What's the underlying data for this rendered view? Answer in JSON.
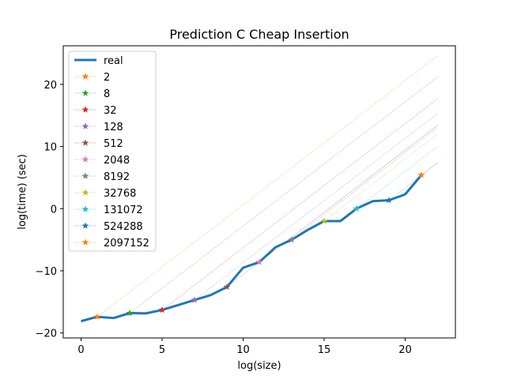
{
  "chart_data": {
    "type": "line",
    "title": "Prediction C Cheap Insertion",
    "xlabel": "log(size)",
    "ylabel": "log(time) (sec)",
    "xlim": [
      -1.1,
      23.1
    ],
    "ylim": [
      -20.8,
      26.2
    ],
    "xticks": [
      0,
      5,
      10,
      15,
      20
    ],
    "yticks": [
      -20,
      -10,
      0,
      10,
      20
    ],
    "grid": false,
    "legend_position": "top-left",
    "real": {
      "name": "real",
      "color": "#1f77b4",
      "x": [
        0,
        1,
        2,
        3,
        4,
        5,
        6,
        7,
        8,
        9,
        10,
        11,
        12,
        13,
        14,
        15,
        16,
        17,
        18,
        19,
        20,
        21
      ],
      "y": [
        -18.1,
        -17.4,
        -17.6,
        -16.8,
        -16.85,
        -16.3,
        -15.5,
        -14.7,
        -13.9,
        -12.6,
        -9.5,
        -8.6,
        -6.2,
        -5.0,
        -3.4,
        -2.0,
        -2.0,
        0.0,
        1.2,
        1.35,
        2.3,
        5.4
      ]
    },
    "series": [
      {
        "name": "2",
        "color": "#ff7f0e",
        "x0": 1,
        "y0": -17.4,
        "x1": 22,
        "y1": 24.6
      },
      {
        "name": "8",
        "color": "#2ca02c",
        "x0": 3,
        "y0": -16.8,
        "x1": 22,
        "y1": 21.2
      },
      {
        "name": "32",
        "color": "#d62728",
        "x0": 5,
        "y0": -16.3,
        "x1": 22,
        "y1": 17.7
      },
      {
        "name": "128",
        "color": "#9467bd",
        "x0": 7,
        "y0": -14.7,
        "x1": 22,
        "y1": 15.3
      },
      {
        "name": "512",
        "color": "#8c564b",
        "x0": 9,
        "y0": -12.6,
        "x1": 22,
        "y1": 13.4
      },
      {
        "name": "2048",
        "color": "#e377c2",
        "x0": 11,
        "y0": -8.6,
        "x1": 22,
        "y1": 13.4
      },
      {
        "name": "8192",
        "color": "#7f7f7f",
        "x0": 13,
        "y0": -5.0,
        "x1": 22,
        "y1": 13.0
      },
      {
        "name": "32768",
        "color": "#bcbd22",
        "x0": 15,
        "y0": -2.0,
        "x1": 22,
        "y1": 12.0
      },
      {
        "name": "131072",
        "color": "#17becf",
        "x0": 17,
        "y0": 0.0,
        "x1": 22,
        "y1": 10.0
      },
      {
        "name": "524288",
        "color": "#1f77b4",
        "x0": 19,
        "y0": 1.35,
        "x1": 22,
        "y1": 7.4
      },
      {
        "name": "2097152",
        "color": "#ff7f0e",
        "x0": 21,
        "y0": 5.4,
        "x1": 22,
        "y1": 7.4
      }
    ]
  }
}
